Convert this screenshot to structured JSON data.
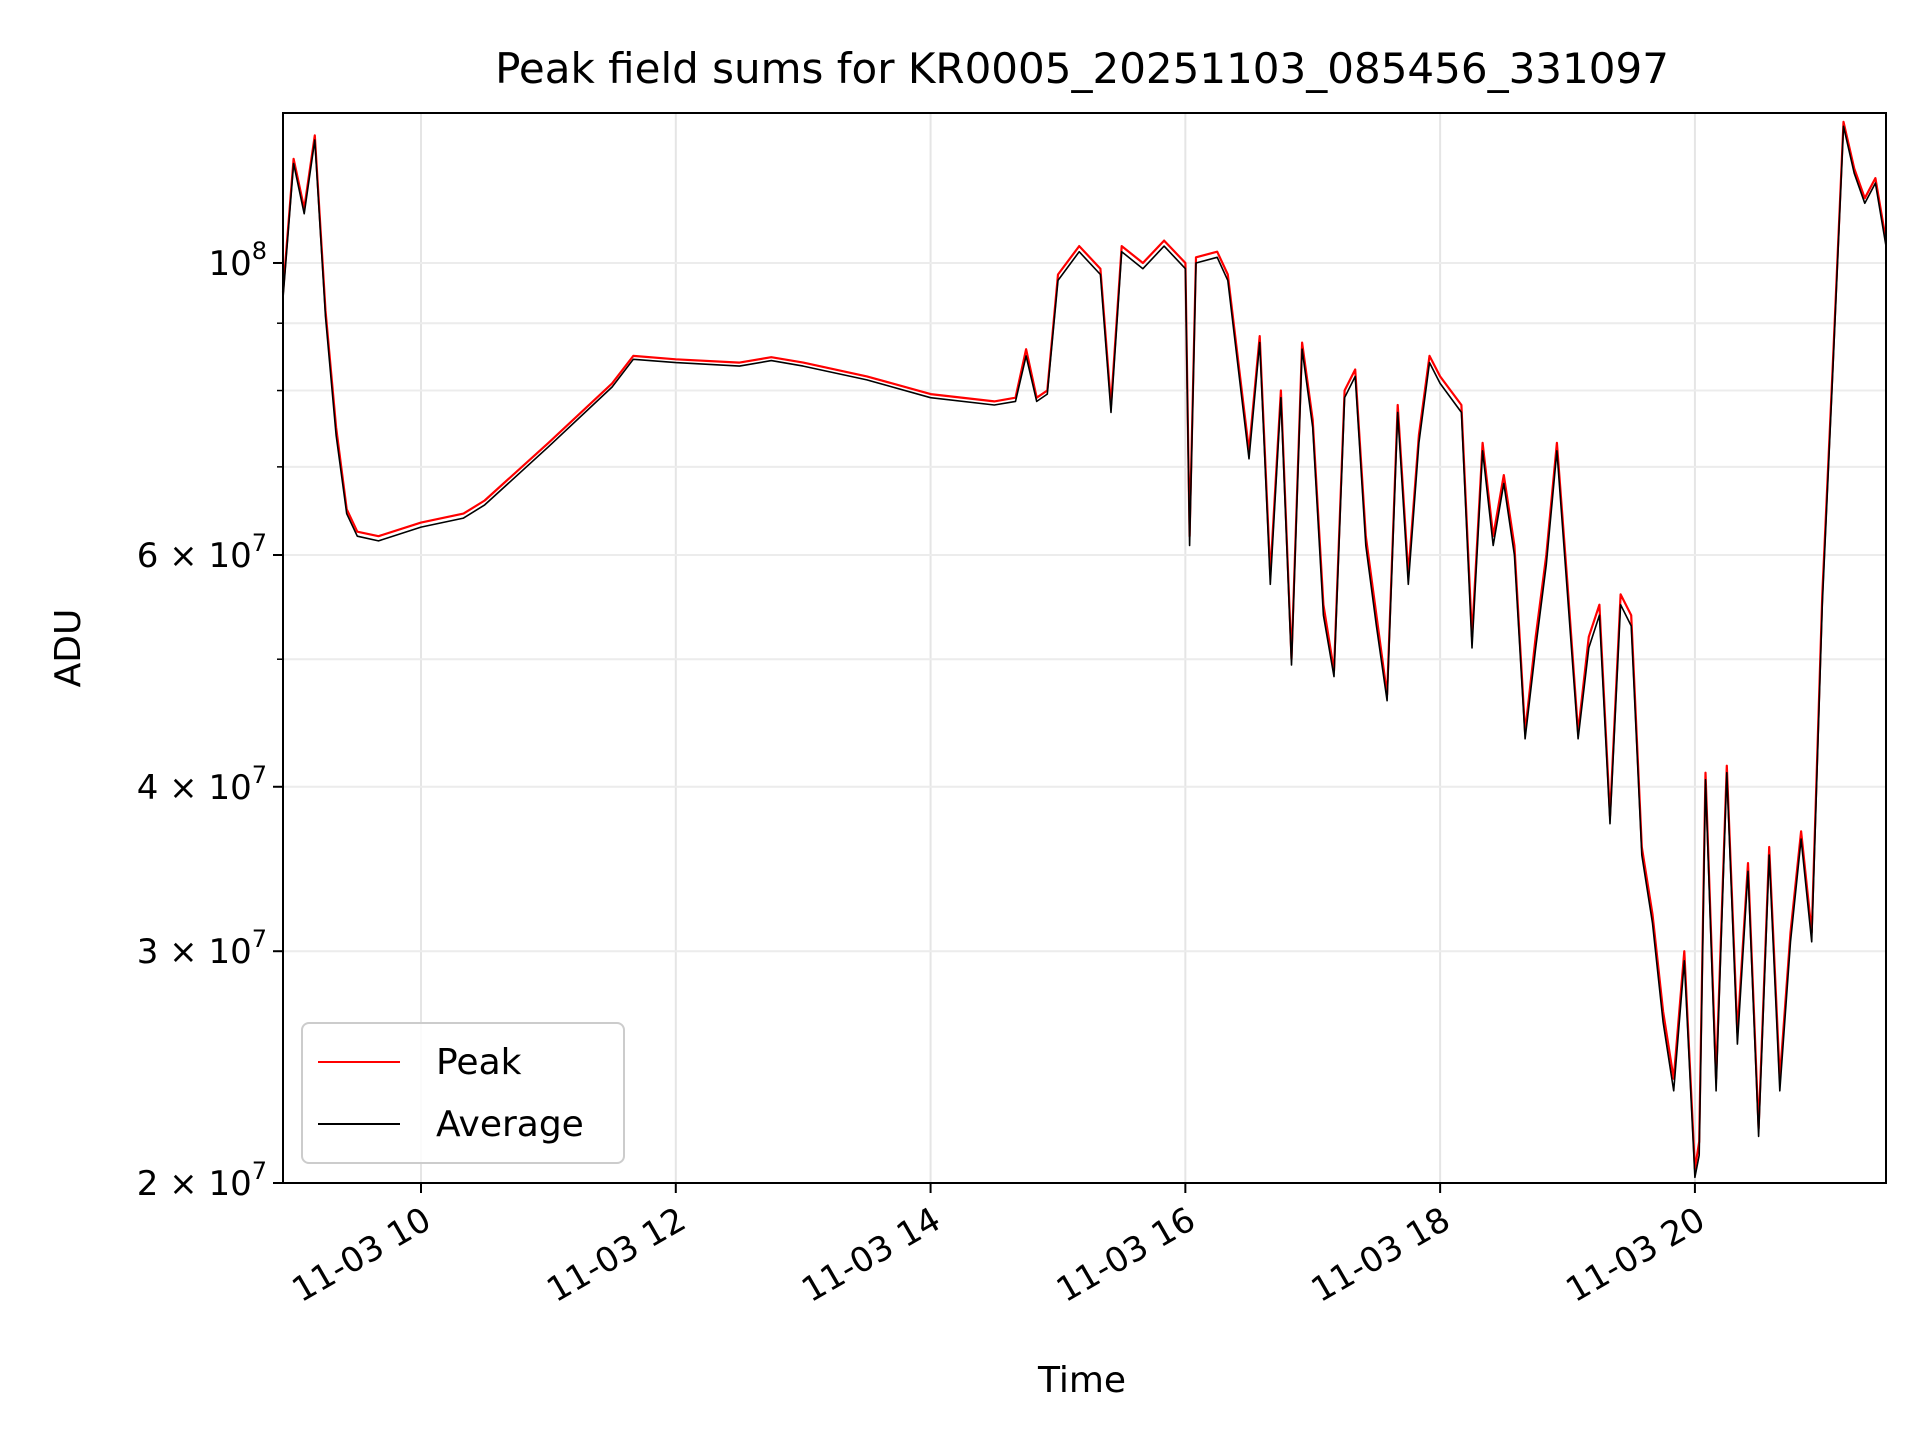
{
  "chart_data": {
    "type": "line",
    "title": "Peak field sums for KR0005_20251103_085456_331097",
    "xlabel": "Time",
    "ylabel": "ADU",
    "yscale": "log",
    "grid": true,
    "legend": {
      "placement": "lower-left"
    },
    "xlim": [
      "2025-11-03 08:55",
      "2025-11-03 21:30"
    ],
    "ylim": [
      20000000,
      130000000
    ],
    "x_ticks": [
      "2025-11-03 10:00",
      "2025-11-03 12:00",
      "2025-11-03 14:00",
      "2025-11-03 16:00",
      "2025-11-03 18:00",
      "2025-11-03 20:00"
    ],
    "x_tick_labels": [
      "11-03 10",
      "11-03 12",
      "11-03 14",
      "11-03 16",
      "11-03 18",
      "11-03 20"
    ],
    "y_ticks": [
      20000000,
      30000000,
      40000000,
      60000000,
      100000000
    ],
    "y_tick_labels": [
      {
        "mantissa": "2",
        "exponent": "7"
      },
      {
        "mantissa": "3",
        "exponent": "7"
      },
      {
        "mantissa": "4",
        "exponent": "7"
      },
      {
        "mantissa": "6",
        "exponent": "7"
      },
      {
        "mantissa": "",
        "exponent": "8"
      }
    ],
    "series": [
      {
        "name": "Peak",
        "color": "#ff0000",
        "x": [
          "2025-11-03 08:55",
          "2025-11-03 09:00",
          "2025-11-03 09:05",
          "2025-11-03 09:10",
          "2025-11-03 09:15",
          "2025-11-03 09:20",
          "2025-11-03 09:25",
          "2025-11-03 09:30",
          "2025-11-03 09:40",
          "2025-11-03 10:00",
          "2025-11-03 10:20",
          "2025-11-03 10:30",
          "2025-11-03 11:00",
          "2025-11-03 11:30",
          "2025-11-03 11:40",
          "2025-11-03 12:00",
          "2025-11-03 12:30",
          "2025-11-03 12:45",
          "2025-11-03 13:00",
          "2025-11-03 13:30",
          "2025-11-03 14:00",
          "2025-11-03 14:30",
          "2025-11-03 14:40",
          "2025-11-03 14:45",
          "2025-11-03 14:50",
          "2025-11-03 14:55",
          "2025-11-03 15:00",
          "2025-11-03 15:10",
          "2025-11-03 15:20",
          "2025-11-03 15:25",
          "2025-11-03 15:30",
          "2025-11-03 15:40",
          "2025-11-03 15:50",
          "2025-11-03 16:00",
          "2025-11-03 16:02",
          "2025-11-03 16:05",
          "2025-11-03 16:15",
          "2025-11-03 16:20",
          "2025-11-03 16:30",
          "2025-11-03 16:35",
          "2025-11-03 16:40",
          "2025-11-03 16:45",
          "2025-11-03 16:50",
          "2025-11-03 16:55",
          "2025-11-03 17:00",
          "2025-11-03 17:05",
          "2025-11-03 17:10",
          "2025-11-03 17:15",
          "2025-11-03 17:20",
          "2025-11-03 17:25",
          "2025-11-03 17:30",
          "2025-11-03 17:35",
          "2025-11-03 17:40",
          "2025-11-03 17:45",
          "2025-11-03 17:50",
          "2025-11-03 17:55",
          "2025-11-03 18:00",
          "2025-11-03 18:10",
          "2025-11-03 18:15",
          "2025-11-03 18:20",
          "2025-11-03 18:25",
          "2025-11-03 18:30",
          "2025-11-03 18:35",
          "2025-11-03 18:40",
          "2025-11-03 18:45",
          "2025-11-03 18:50",
          "2025-11-03 18:55",
          "2025-11-03 19:00",
          "2025-11-03 19:05",
          "2025-11-03 19:10",
          "2025-11-03 19:15",
          "2025-11-03 19:20",
          "2025-11-03 19:25",
          "2025-11-03 19:30",
          "2025-11-03 19:35",
          "2025-11-03 19:40",
          "2025-11-03 19:45",
          "2025-11-03 19:50",
          "2025-11-03 19:55",
          "2025-11-03 20:00",
          "2025-11-03 20:02",
          "2025-11-03 20:05",
          "2025-11-03 20:10",
          "2025-11-03 20:15",
          "2025-11-03 20:20",
          "2025-11-03 20:25",
          "2025-11-03 20:30",
          "2025-11-03 20:35",
          "2025-11-03 20:40",
          "2025-11-03 20:45",
          "2025-11-03 20:50",
          "2025-11-03 20:55",
          "2025-11-03 21:00",
          "2025-11-03 21:05",
          "2025-11-03 21:10",
          "2025-11-03 21:15",
          "2025-11-03 21:20",
          "2025-11-03 21:25",
          "2025-11-03 21:30"
        ],
        "values": [
          95000000,
          120000000,
          110000000,
          125000000,
          92000000,
          75000000,
          65000000,
          62500000,
          62000000,
          63500000,
          64500000,
          66000000,
          73000000,
          81000000,
          85000000,
          84500000,
          84000000,
          84800000,
          84000000,
          82000000,
          79500000,
          78500000,
          79000000,
          86000000,
          79000000,
          80000000,
          98000000,
          103000000,
          99000000,
          78000000,
          103000000,
          100000000,
          104000000,
          100000000,
          62000000,
          101000000,
          102000000,
          98000000,
          72000000,
          88000000,
          58000000,
          80000000,
          50000000,
          87000000,
          76000000,
          55000000,
          49000000,
          80000000,
          83000000,
          62000000,
          54000000,
          47000000,
          78000000,
          58000000,
          74000000,
          85000000,
          82000000,
          78000000,
          52000000,
          73000000,
          62000000,
          69000000,
          61000000,
          44000000,
          52000000,
          60000000,
          73000000,
          57000000,
          44000000,
          52000000,
          55000000,
          38000000,
          56000000,
          54000000,
          36000000,
          32000000,
          27000000,
          24000000,
          30000000,
          20500000,
          21500000,
          41000000,
          24000000,
          41500000,
          26000000,
          35000000,
          22000000,
          36000000,
          24000000,
          31000000,
          37000000,
          31000000,
          56000000,
          84000000,
          128000000,
          118000000,
          112000000,
          116000000,
          104000000
        ]
      },
      {
        "name": "Average",
        "color": "#000000",
        "x": [
          "2025-11-03 08:55",
          "2025-11-03 09:00",
          "2025-11-03 09:05",
          "2025-11-03 09:10",
          "2025-11-03 09:15",
          "2025-11-03 09:20",
          "2025-11-03 09:25",
          "2025-11-03 09:30",
          "2025-11-03 09:40",
          "2025-11-03 10:00",
          "2025-11-03 10:20",
          "2025-11-03 10:30",
          "2025-11-03 11:00",
          "2025-11-03 11:30",
          "2025-11-03 11:40",
          "2025-11-03 12:00",
          "2025-11-03 12:30",
          "2025-11-03 12:45",
          "2025-11-03 13:00",
          "2025-11-03 13:30",
          "2025-11-03 14:00",
          "2025-11-03 14:30",
          "2025-11-03 14:40",
          "2025-11-03 14:45",
          "2025-11-03 14:50",
          "2025-11-03 14:55",
          "2025-11-03 15:00",
          "2025-11-03 15:10",
          "2025-11-03 15:20",
          "2025-11-03 15:25",
          "2025-11-03 15:30",
          "2025-11-03 15:40",
          "2025-11-03 15:50",
          "2025-11-03 16:00",
          "2025-11-03 16:02",
          "2025-11-03 16:05",
          "2025-11-03 16:15",
          "2025-11-03 16:20",
          "2025-11-03 16:30",
          "2025-11-03 16:35",
          "2025-11-03 16:40",
          "2025-11-03 16:45",
          "2025-11-03 16:50",
          "2025-11-03 16:55",
          "2025-11-03 17:00",
          "2025-11-03 17:05",
          "2025-11-03 17:10",
          "2025-11-03 17:15",
          "2025-11-03 17:20",
          "2025-11-03 17:25",
          "2025-11-03 17:30",
          "2025-11-03 17:35",
          "2025-11-03 17:40",
          "2025-11-03 17:45",
          "2025-11-03 17:50",
          "2025-11-03 17:55",
          "2025-11-03 18:00",
          "2025-11-03 18:10",
          "2025-11-03 18:15",
          "2025-11-03 18:20",
          "2025-11-03 18:25",
          "2025-11-03 18:30",
          "2025-11-03 18:35",
          "2025-11-03 18:40",
          "2025-11-03 18:45",
          "2025-11-03 18:50",
          "2025-11-03 18:55",
          "2025-11-03 19:00",
          "2025-11-03 19:05",
          "2025-11-03 19:10",
          "2025-11-03 19:15",
          "2025-11-03 19:20",
          "2025-11-03 19:25",
          "2025-11-03 19:30",
          "2025-11-03 19:35",
          "2025-11-03 19:40",
          "2025-11-03 19:45",
          "2025-11-03 19:50",
          "2025-11-03 19:55",
          "2025-11-03 20:00",
          "2025-11-03 20:02",
          "2025-11-03 20:05",
          "2025-11-03 20:10",
          "2025-11-03 20:15",
          "2025-11-03 20:20",
          "2025-11-03 20:25",
          "2025-11-03 20:30",
          "2025-11-03 20:35",
          "2025-11-03 20:40",
          "2025-11-03 20:45",
          "2025-11-03 20:50",
          "2025-11-03 20:55",
          "2025-11-03 21:00",
          "2025-11-03 21:05",
          "2025-11-03 21:10",
          "2025-11-03 21:15",
          "2025-11-03 21:20",
          "2025-11-03 21:25",
          "2025-11-03 21:30"
        ],
        "values": [
          94000000,
          119000000,
          109000000,
          124000000,
          91000000,
          74000000,
          64500000,
          62000000,
          61500000,
          63000000,
          64000000,
          65500000,
          72500000,
          80500000,
          84500000,
          84000000,
          83500000,
          84300000,
          83500000,
          81500000,
          79000000,
          78000000,
          78500000,
          85000000,
          78500000,
          79500000,
          97000000,
          102000000,
          98000000,
          77000000,
          102000000,
          99000000,
          103000000,
          99000000,
          61000000,
          100000000,
          101000000,
          97000000,
          71000000,
          87000000,
          57000000,
          79000000,
          49500000,
          86000000,
          75000000,
          54000000,
          48500000,
          79000000,
          82000000,
          61000000,
          53000000,
          46500000,
          77000000,
          57000000,
          73000000,
          84000000,
          81000000,
          77000000,
          51000000,
          72000000,
          61000000,
          68000000,
          60000000,
          43500000,
          51000000,
          59000000,
          72000000,
          56000000,
          43500000,
          51000000,
          54000000,
          37500000,
          55000000,
          53000000,
          35500000,
          31500000,
          26500000,
          23500000,
          29500000,
          20200000,
          21000000,
          40500000,
          23500000,
          41000000,
          25500000,
          34500000,
          21700000,
          35500000,
          23500000,
          30500000,
          36500000,
          30500000,
          55000000,
          83000000,
          127000000,
          117000000,
          111000000,
          115000000,
          103000000
        ]
      }
    ]
  }
}
